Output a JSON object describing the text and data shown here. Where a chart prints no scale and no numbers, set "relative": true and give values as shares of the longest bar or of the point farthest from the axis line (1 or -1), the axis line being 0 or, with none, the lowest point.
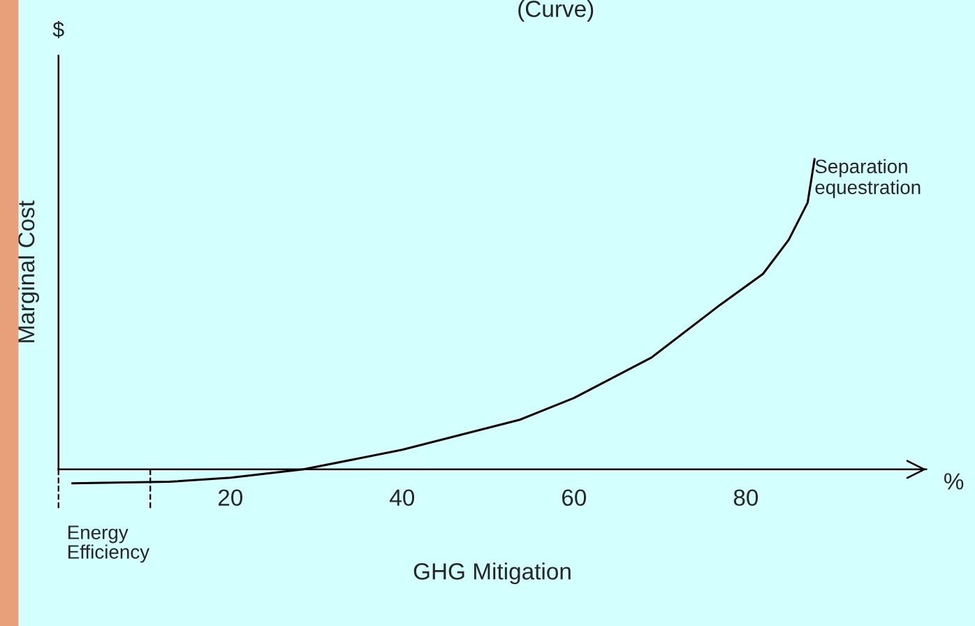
{
  "chart_data": {
    "type": "line",
    "title": "(Curve)",
    "xlabel": "GHG Mitigation",
    "ylabel": "Marginal Cost",
    "relative": true,
    "x": [
      1.6,
      12.9,
      20,
      28.5,
      40,
      53.7,
      60,
      69,
      77,
      82,
      85,
      87.2,
      88
    ],
    "series": [
      {
        "color": "#000000",
        "values": [
          -0.045,
          -0.04,
          -0.027,
          0,
          0.063,
          0.16,
          0.23,
          0.36,
          0.53,
          0.63,
          0.74,
          0.86,
          1
        ]
      }
    ],
    "xlim": [
      0,
      101
    ],
    "xticks": [
      20,
      40,
      60,
      80
    ],
    "annotations": [
      "$",
      "%",
      {
        "text": "Separation\nequestration",
        "x": 88,
        "y": 1
      },
      "Energy\nEfficiency"
    ]
  }
}
